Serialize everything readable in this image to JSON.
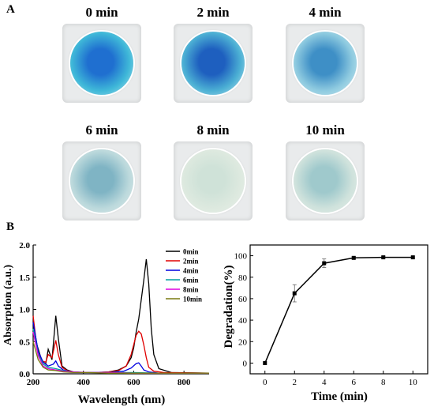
{
  "panels": {
    "a": "A",
    "b": "B"
  },
  "photos": [
    {
      "label": "0 min",
      "center": "#1f6fd0",
      "edge": "#3fb8d8",
      "rim": "#bfe7ef"
    },
    {
      "label": "2 min",
      "center": "#1e5fbf",
      "edge": "#4cb0d4",
      "rim": "#c8ebf2"
    },
    {
      "label": "4 min",
      "center": "#3e8fc6",
      "edge": "#8fcbe0",
      "rim": "#d7eef2"
    },
    {
      "label": "6 min",
      "center": "#7fb4c4",
      "edge": "#bcd9dc",
      "rim": "#dfeceb"
    },
    {
      "label": "8 min",
      "center": "#cfe2d8",
      "edge": "#dde9df",
      "rim": "#e8efe9"
    },
    {
      "label": "10 min",
      "center": "#9fc9cc",
      "edge": "#cfe2dc",
      "rim": "#e6efe9"
    }
  ],
  "chart_data": [
    {
      "type": "line",
      "xlabel": "Wavelength (nm)",
      "ylabel": "Absorption (a.u.)",
      "xlim": [
        200,
        900
      ],
      "ylim": [
        0,
        2.0
      ],
      "xticks": [
        "200",
        "400",
        "600",
        "800"
      ],
      "yticks": [
        "0.0",
        "0.5",
        "1.0",
        "1.5",
        "2.0"
      ],
      "legend_position": "top-right",
      "series": [
        {
          "name": "0min",
          "color": "#000000",
          "x": [
            200,
            215,
            235,
            250,
            260,
            275,
            290,
            300,
            315,
            335,
            360,
            400,
            450,
            500,
            540,
            570,
            590,
            600,
            610,
            620,
            630,
            640,
            650,
            660,
            670,
            680,
            700,
            750,
            900
          ],
          "y": [
            0.8,
            0.45,
            0.2,
            0.15,
            0.38,
            0.22,
            0.9,
            0.55,
            0.12,
            0.06,
            0.03,
            0.02,
            0.02,
            0.03,
            0.06,
            0.12,
            0.25,
            0.4,
            0.65,
            0.85,
            1.15,
            1.45,
            1.78,
            1.4,
            0.7,
            0.3,
            0.08,
            0.02,
            0.01
          ]
        },
        {
          "name": "2min",
          "color": "#e00000",
          "x": [
            200,
            215,
            235,
            250,
            260,
            275,
            290,
            300,
            315,
            335,
            360,
            400,
            450,
            500,
            540,
            570,
            590,
            600,
            610,
            620,
            630,
            640,
            650,
            660,
            680,
            720,
            900
          ],
          "y": [
            0.9,
            0.4,
            0.2,
            0.18,
            0.3,
            0.25,
            0.52,
            0.3,
            0.1,
            0.05,
            0.03,
            0.02,
            0.02,
            0.03,
            0.05,
            0.12,
            0.3,
            0.45,
            0.6,
            0.66,
            0.62,
            0.45,
            0.25,
            0.1,
            0.04,
            0.02,
            0.01
          ]
        },
        {
          "name": "4min",
          "color": "#0000e0",
          "x": [
            200,
            220,
            240,
            260,
            280,
            290,
            300,
            320,
            350,
            400,
            500,
            560,
            590,
            610,
            620,
            630,
            640,
            660,
            700,
            900
          ],
          "y": [
            0.8,
            0.35,
            0.18,
            0.12,
            0.15,
            0.2,
            0.12,
            0.06,
            0.03,
            0.02,
            0.02,
            0.04,
            0.09,
            0.16,
            0.17,
            0.12,
            0.06,
            0.03,
            0.01,
            0.01
          ]
        },
        {
          "name": "6min",
          "color": "#00a0a0",
          "x": [
            200,
            220,
            240,
            260,
            290,
            320,
            360,
            420,
            500,
            600,
            700,
            900
          ],
          "y": [
            0.7,
            0.3,
            0.15,
            0.1,
            0.08,
            0.05,
            0.03,
            0.02,
            0.02,
            0.02,
            0.01,
            0.01
          ]
        },
        {
          "name": "8min",
          "color": "#e000e0",
          "x": [
            200,
            220,
            240,
            260,
            290,
            320,
            360,
            420,
            500,
            600,
            700,
            900
          ],
          "y": [
            0.65,
            0.28,
            0.12,
            0.08,
            0.06,
            0.04,
            0.03,
            0.02,
            0.02,
            0.01,
            0.01,
            0.01
          ]
        },
        {
          "name": "10min",
          "color": "#7a7a10",
          "x": [
            200,
            220,
            240,
            260,
            290,
            320,
            360,
            420,
            500,
            600,
            700,
            900
          ],
          "y": [
            0.5,
            0.22,
            0.1,
            0.06,
            0.05,
            0.03,
            0.02,
            0.02,
            0.01,
            0.01,
            0.01,
            0.01
          ]
        }
      ]
    },
    {
      "type": "line",
      "xlabel": "Time (min)",
      "ylabel": "Degradation(%)",
      "xlim": [
        -1,
        11
      ],
      "ylim": [
        -10,
        110
      ],
      "xticks": [
        "0",
        "2",
        "4",
        "6",
        "8",
        "10"
      ],
      "yticks": [
        "0",
        "20",
        "40",
        "60",
        "80",
        "100"
      ],
      "series": [
        {
          "color": "#000000",
          "x": [
            0,
            2,
            4,
            6,
            8,
            10
          ],
          "y": [
            0,
            65,
            93,
            98,
            98.5,
            98.5
          ],
          "error": [
            0,
            8,
            4,
            1,
            0.8,
            0.5
          ]
        }
      ]
    }
  ]
}
